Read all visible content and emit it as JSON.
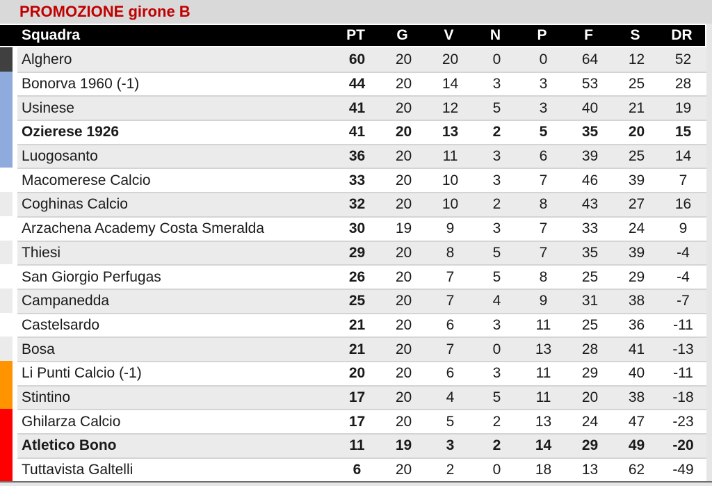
{
  "title": "PROMOZIONE girone B",
  "colors": {
    "title_text": "#c00000",
    "title_bg": "#d9d9d9",
    "header_bg": "#000000",
    "header_text": "#ffffff",
    "row_bg": "#ffffff",
    "row_alt_bg": "#ebebeb",
    "separator": "#d4d4d4",
    "strips": {
      "darkgray": "#404040",
      "blue": "#8faadc",
      "orange": "#ff9300",
      "red": "#ff0000",
      "none": ""
    }
  },
  "table": {
    "team_column_header": "Squadra",
    "stat_columns": [
      "PT",
      "G",
      "V",
      "N",
      "P",
      "F",
      "S",
      "DR"
    ],
    "stat_keys": [
      "pt",
      "g",
      "v",
      "n",
      "p",
      "f",
      "s",
      "dr"
    ],
    "rows": [
      {
        "team": "Alghero",
        "strip": "darkgray",
        "bold": false,
        "pt": 60,
        "g": 20,
        "v": 20,
        "n": 0,
        "p": 0,
        "f": 64,
        "s": 12,
        "dr": 52
      },
      {
        "team": "Bonorva 1960 (-1)",
        "strip": "blue",
        "bold": false,
        "pt": 44,
        "g": 20,
        "v": 14,
        "n": 3,
        "p": 3,
        "f": 53,
        "s": 25,
        "dr": 28
      },
      {
        "team": "Usinese",
        "strip": "blue",
        "bold": false,
        "pt": 41,
        "g": 20,
        "v": 12,
        "n": 5,
        "p": 3,
        "f": 40,
        "s": 21,
        "dr": 19
      },
      {
        "team": "Ozierese 1926",
        "strip": "blue",
        "bold": true,
        "pt": 41,
        "g": 20,
        "v": 13,
        "n": 2,
        "p": 5,
        "f": 35,
        "s": 20,
        "dr": 15
      },
      {
        "team": "Luogosanto",
        "strip": "blue",
        "bold": false,
        "pt": 36,
        "g": 20,
        "v": 11,
        "n": 3,
        "p": 6,
        "f": 39,
        "s": 25,
        "dr": 14
      },
      {
        "team": "Macomerese Calcio",
        "strip": "none",
        "bold": false,
        "pt": 33,
        "g": 20,
        "v": 10,
        "n": 3,
        "p": 7,
        "f": 46,
        "s": 39,
        "dr": 7
      },
      {
        "team": "Coghinas Calcio",
        "strip": "none",
        "bold": false,
        "pt": 32,
        "g": 20,
        "v": 10,
        "n": 2,
        "p": 8,
        "f": 43,
        "s": 27,
        "dr": 16
      },
      {
        "team": "Arzachena Academy Costa Smeralda",
        "strip": "none",
        "bold": false,
        "pt": 30,
        "g": 19,
        "v": 9,
        "n": 3,
        "p": 7,
        "f": 33,
        "s": 24,
        "dr": 9
      },
      {
        "team": "Thiesi",
        "strip": "none",
        "bold": false,
        "pt": 29,
        "g": 20,
        "v": 8,
        "n": 5,
        "p": 7,
        "f": 35,
        "s": 39,
        "dr": -4
      },
      {
        "team": "San Giorgio Perfugas",
        "strip": "none",
        "bold": false,
        "pt": 26,
        "g": 20,
        "v": 7,
        "n": 5,
        "p": 8,
        "f": 25,
        "s": 29,
        "dr": -4
      },
      {
        "team": "Campanedda",
        "strip": "none",
        "bold": false,
        "pt": 25,
        "g": 20,
        "v": 7,
        "n": 4,
        "p": 9,
        "f": 31,
        "s": 38,
        "dr": -7
      },
      {
        "team": "Castelsardo",
        "strip": "none",
        "bold": false,
        "pt": 21,
        "g": 20,
        "v": 6,
        "n": 3,
        "p": 11,
        "f": 25,
        "s": 36,
        "dr": -11
      },
      {
        "team": "Bosa",
        "strip": "none",
        "bold": false,
        "pt": 21,
        "g": 20,
        "v": 7,
        "n": 0,
        "p": 13,
        "f": 28,
        "s": 41,
        "dr": -13
      },
      {
        "team": "Li Punti Calcio (-1)",
        "strip": "orange",
        "bold": false,
        "pt": 20,
        "g": 20,
        "v": 6,
        "n": 3,
        "p": 11,
        "f": 29,
        "s": 40,
        "dr": -11
      },
      {
        "team": "Stintino",
        "strip": "orange",
        "bold": false,
        "pt": 17,
        "g": 20,
        "v": 4,
        "n": 5,
        "p": 11,
        "f": 20,
        "s": 38,
        "dr": -18
      },
      {
        "team": "Ghilarza Calcio",
        "strip": "red",
        "bold": false,
        "pt": 17,
        "g": 20,
        "v": 5,
        "n": 2,
        "p": 13,
        "f": 24,
        "s": 47,
        "dr": -23
      },
      {
        "team": "Atletico Bono",
        "strip": "red",
        "bold": true,
        "pt": 11,
        "g": 19,
        "v": 3,
        "n": 2,
        "p": 14,
        "f": 29,
        "s": 49,
        "dr": -20
      },
      {
        "team": "Tuttavista Galtelli",
        "strip": "red",
        "bold": false,
        "pt": 6,
        "g": 20,
        "v": 2,
        "n": 0,
        "p": 18,
        "f": 13,
        "s": 62,
        "dr": -49
      }
    ]
  }
}
